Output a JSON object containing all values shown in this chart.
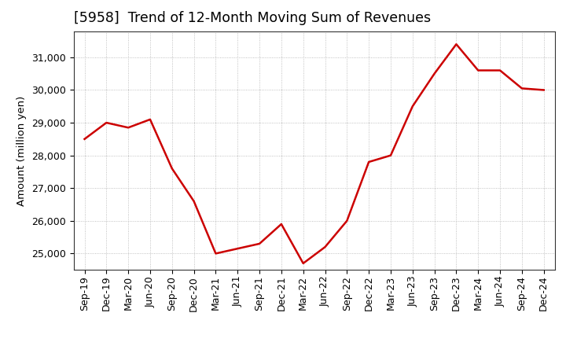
{
  "title": "[5958]  Trend of 12-Month Moving Sum of Revenues",
  "ylabel": "Amount (million yen)",
  "line_color": "#cc0000",
  "background_color": "#ffffff",
  "plot_bg_color": "#ffffff",
  "grid_color": "#b0b0b0",
  "x_labels": [
    "Sep-19",
    "Dec-19",
    "Mar-20",
    "Jun-20",
    "Sep-20",
    "Dec-20",
    "Mar-21",
    "Jun-21",
    "Sep-21",
    "Dec-21",
    "Mar-22",
    "Jun-22",
    "Sep-22",
    "Dec-22",
    "Mar-23",
    "Jun-23",
    "Sep-23",
    "Dec-23",
    "Mar-24",
    "Jun-24",
    "Sep-24",
    "Dec-24"
  ],
  "values": [
    28500,
    29000,
    28850,
    29100,
    27600,
    26600,
    25000,
    25150,
    25300,
    25900,
    24700,
    25200,
    26000,
    27800,
    28000,
    29500,
    30500,
    31400,
    30600,
    30600,
    30050,
    30000
  ],
  "ylim": [
    24500,
    31800
  ],
  "yticks": [
    25000,
    26000,
    27000,
    28000,
    29000,
    30000,
    31000
  ],
  "title_fontsize": 12.5,
  "label_fontsize": 9.5,
  "tick_fontsize": 9
}
